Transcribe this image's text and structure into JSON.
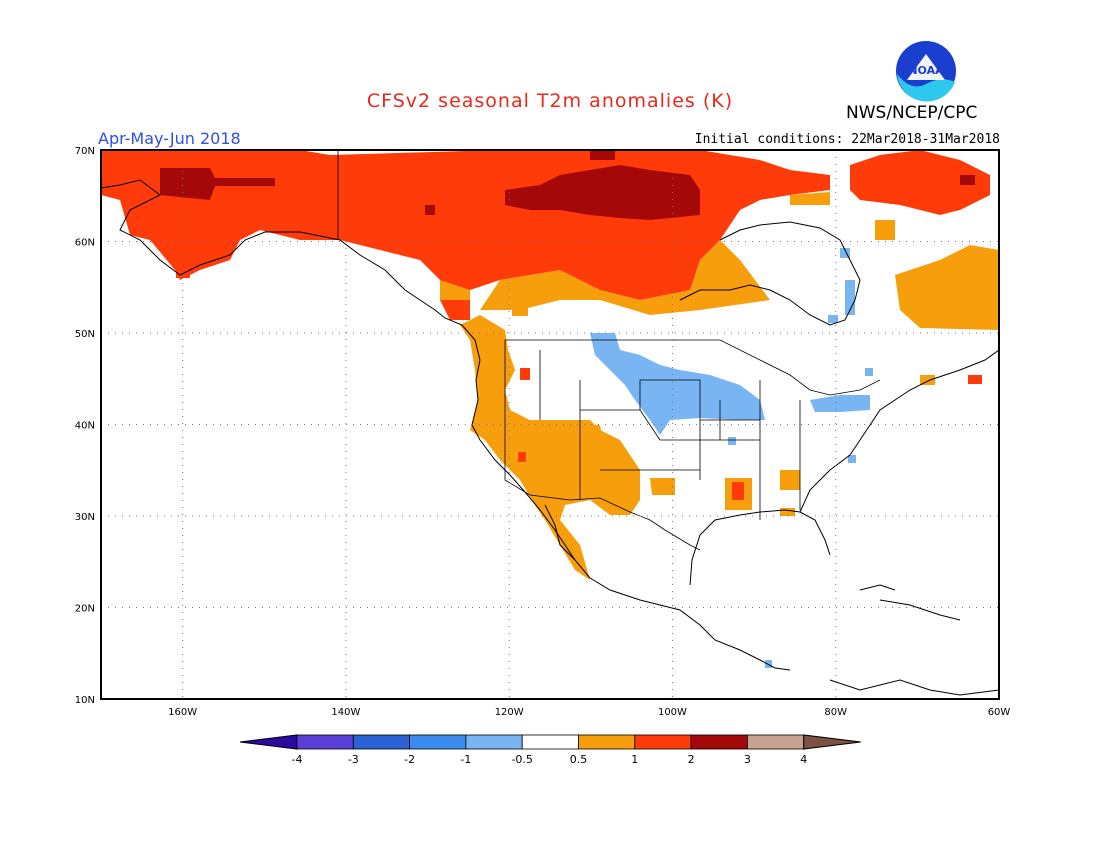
{
  "header": {
    "title": "CFSv2 seasonal T2m anomalies (K)",
    "agency": "NWS/NCEP/CPC",
    "logo_text": "NOAA",
    "season": "Apr-May-Jun 2018",
    "initial_conditions": "Initial conditions: 22Mar2018-31Mar2018"
  },
  "map": {
    "lat_labels": [
      "70N",
      "60N",
      "50N",
      "40N",
      "30N",
      "20N",
      "10N"
    ],
    "lon_labels": [
      "160W",
      "140W",
      "120W",
      "100W",
      "80W",
      "60W"
    ],
    "lat_range": [
      10,
      70
    ],
    "lon_range": [
      -170,
      -60
    ],
    "grid": "dotted"
  },
  "colorbar": {
    "labels": [
      "-4",
      "-3",
      "-2",
      "-1",
      "-0.5",
      "0.5",
      "1",
      "2",
      "3",
      "4"
    ],
    "colors": [
      "#2c0aa0",
      "#5a3fd6",
      "#2a63d6",
      "#3c8cf0",
      "#79b4f3",
      "#ffffff",
      "#f79e0c",
      "#ff3b0a",
      "#a50808",
      "#c8a290",
      "#7b5244"
    ]
  },
  "colors": {
    "title": "#e8291b",
    "season": "#2f4fe8",
    "warm_light": "#f79e0c",
    "warm_mid": "#ff3b0a",
    "warm_dark": "#a50808",
    "cool_light": "#79b4f3"
  }
}
